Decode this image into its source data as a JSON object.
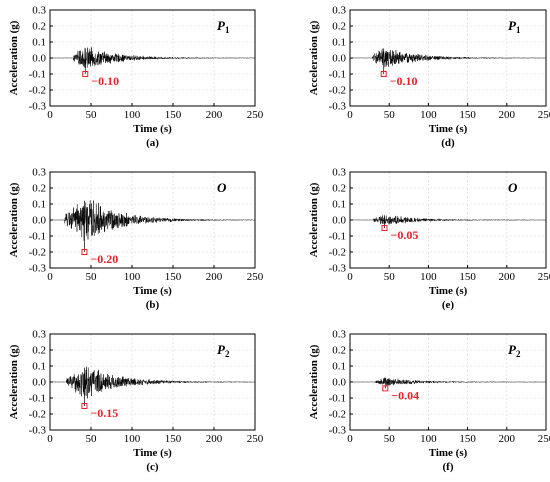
{
  "colors": {
    "signal": "#000000",
    "peak": "#e8202a",
    "grid": "#d4d4d4",
    "axis": "#000000"
  },
  "chart_data": [
    {
      "type": "line",
      "panel_label": "(a)",
      "station": "P",
      "station_sub": "1",
      "xlabel": "Time (s)",
      "ylabel": "Acceleration (g)",
      "xlim": [
        0,
        250
      ],
      "ylim": [
        -0.3,
        0.3
      ],
      "xticks": [
        "0",
        "50",
        "100",
        "150",
        "200",
        "250"
      ],
      "yticks": [
        "0.3",
        "0.2",
        "0.1",
        "0.0",
        "-0.1",
        "-0.2",
        "-0.3"
      ],
      "grid": true,
      "signal_start_s": 28,
      "peak_time_s": 43,
      "peak_time_envelope_s": 43,
      "max_amplitude": 0.1,
      "peak_value": -0.1,
      "peak_label": "−0.10"
    },
    {
      "type": "line",
      "panel_label": "(b)",
      "station": "O",
      "station_sub": "",
      "xlabel": "Time (s)",
      "ylabel": "Acceleration (g)",
      "xlim": [
        0,
        250
      ],
      "ylim": [
        -0.3,
        0.3
      ],
      "xticks": [
        "0",
        "50",
        "100",
        "150",
        "200",
        "250"
      ],
      "yticks": [
        "0.3",
        "0.2",
        "0.1",
        "0.0",
        "-0.1",
        "-0.2",
        "-0.3"
      ],
      "grid": true,
      "signal_start_s": 18,
      "peak_time_s": 42,
      "peak_time_envelope_s": 45,
      "max_amplitude": 0.2,
      "peak_value": -0.2,
      "peak_label": "−0.20"
    },
    {
      "type": "line",
      "panel_label": "(c)",
      "station": "P",
      "station_sub": "2",
      "xlabel": "Time (s)",
      "ylabel": "Acceleration (g)",
      "xlim": [
        0,
        250
      ],
      "ylim": [
        -0.3,
        0.3
      ],
      "xticks": [
        "0",
        "50",
        "100",
        "150",
        "200",
        "250"
      ],
      "yticks": [
        "0.3",
        "0.2",
        "0.1",
        "0.0",
        "-0.1",
        "-0.2",
        "-0.3"
      ],
      "grid": true,
      "signal_start_s": 20,
      "peak_time_s": 42,
      "peak_time_envelope_s": 45,
      "max_amplitude": 0.15,
      "peak_value": -0.15,
      "peak_label": "−0.15"
    },
    {
      "type": "line",
      "panel_label": "(d)",
      "station": "P",
      "station_sub": "1",
      "xlabel": "Time (s)",
      "ylabel": "Acceleration (g)",
      "xlim": [
        0,
        250
      ],
      "ylim": [
        -0.3,
        0.3
      ],
      "xticks": [
        "0",
        "50",
        "100",
        "150",
        "200",
        "250"
      ],
      "yticks": [
        "0.3",
        "0.2",
        "0.1",
        "0.0",
        "-0.1",
        "-0.2",
        "-0.3"
      ],
      "grid": true,
      "signal_start_s": 28,
      "peak_time_s": 43,
      "peak_time_envelope_s": 43,
      "max_amplitude": 0.1,
      "peak_value": -0.1,
      "peak_label": "−0.10"
    },
    {
      "type": "line",
      "panel_label": "(e)",
      "station": "O",
      "station_sub": "",
      "xlabel": "Time (s)",
      "ylabel": "Acceleration (g)",
      "xlim": [
        0,
        250
      ],
      "ylim": [
        -0.3,
        0.3
      ],
      "xticks": [
        "0",
        "50",
        "100",
        "150",
        "200",
        "250"
      ],
      "yticks": [
        "0.3",
        "0.2",
        "0.1",
        "0.0",
        "-0.1",
        "-0.2",
        "-0.3"
      ],
      "grid": true,
      "signal_start_s": 30,
      "peak_time_s": 44,
      "peak_time_envelope_s": 44,
      "max_amplitude": 0.05,
      "peak_value": -0.05,
      "peak_label": "−0.05"
    },
    {
      "type": "line",
      "panel_label": "(f)",
      "station": "P",
      "station_sub": "2",
      "xlabel": "Time (s)",
      "ylabel": "Acceleration (g)",
      "xlim": [
        0,
        250
      ],
      "ylim": [
        -0.3,
        0.3
      ],
      "xticks": [
        "0",
        "50",
        "100",
        "150",
        "200",
        "250"
      ],
      "yticks": [
        "0.3",
        "0.2",
        "0.1",
        "0.0",
        "-0.1",
        "-0.2",
        "-0.3"
      ],
      "grid": true,
      "signal_start_s": 32,
      "peak_time_s": 45,
      "peak_time_envelope_s": 45,
      "max_amplitude": 0.04,
      "peak_value": -0.04,
      "peak_label": "−0.04"
    }
  ]
}
